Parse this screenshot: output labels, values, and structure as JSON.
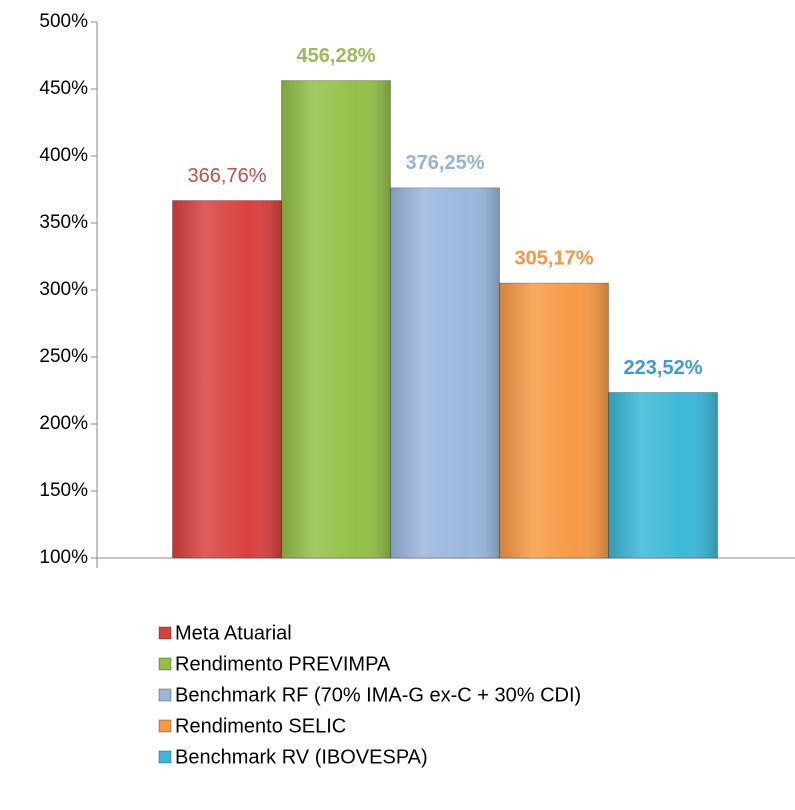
{
  "chart_data": {
    "type": "bar",
    "categories": [
      null
    ],
    "series": [
      {
        "name": "Meta Atuarial",
        "color": "#d9413f",
        "label_color": "#c0504d",
        "label_bold": false,
        "values": [
          366.76
        ],
        "value_labels": [
          "366,76%"
        ]
      },
      {
        "name": "Rendimento PREVIMPA",
        "color": "#93c047",
        "label_color": "#9bbb59",
        "label_bold": true,
        "values": [
          456.28
        ],
        "value_labels": [
          "456,28%"
        ]
      },
      {
        "name": "Benchmark RF (70% IMA-G ex-C + 30% CDI)",
        "color": "#9ab7de",
        "label_color": "#95b3d7",
        "label_bold": true,
        "values": [
          376.25
        ],
        "value_labels": [
          "376,25%"
        ]
      },
      {
        "name": "Rendimento SELIC",
        "color": "#f79a45",
        "label_color": "#f79646",
        "label_bold": true,
        "values": [
          305.17
        ],
        "value_labels": [
          "305,17%"
        ]
      },
      {
        "name": "Benchmark RV (IBOVESPA)",
        "color": "#3bb8d8",
        "label_color": "#3c9be0",
        "label_bold": true,
        "values": [
          223.52
        ],
        "value_labels": [
          "223,52%"
        ]
      }
    ],
    "ylim": [
      100,
      500
    ],
    "yticks": [
      {
        "value": 100,
        "label": "100%"
      },
      {
        "value": 150,
        "label": "150%"
      },
      {
        "value": 200,
        "label": "200%"
      },
      {
        "value": 250,
        "label": "250%"
      },
      {
        "value": 300,
        "label": "300%"
      },
      {
        "value": 350,
        "label": "350%"
      },
      {
        "value": 400,
        "label": "400%"
      },
      {
        "value": 450,
        "label": "450%"
      },
      {
        "value": 500,
        "label": "500%"
      }
    ],
    "grid": false,
    "legend": "bottom"
  }
}
